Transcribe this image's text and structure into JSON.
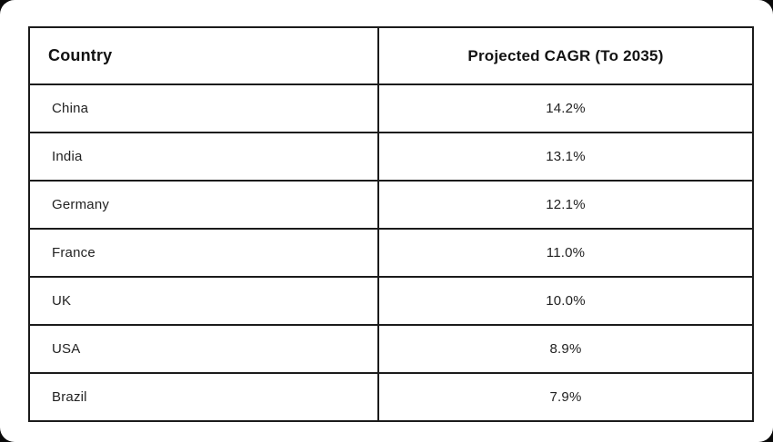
{
  "colors": {
    "page_background": "#0a0a0a",
    "card_background": "#ffffff",
    "table_border": "#1b1b1b",
    "header_text": "#121212",
    "cell_text": "#222222"
  },
  "table": {
    "columns": [
      {
        "label": "Country"
      },
      {
        "label": "Projected CAGR (To 2035)"
      }
    ],
    "rows": [
      {
        "country": "China",
        "cagr": "14.2%"
      },
      {
        "country": "India",
        "cagr": "13.1%"
      },
      {
        "country": "Germany",
        "cagr": "12.1%"
      },
      {
        "country": "France",
        "cagr": "11.0%"
      },
      {
        "country": "UK",
        "cagr": "10.0%"
      },
      {
        "country": "USA",
        "cagr": "8.9%"
      },
      {
        "country": "Brazil",
        "cagr": "7.9%"
      }
    ]
  },
  "chart_data": {
    "type": "table",
    "title": "",
    "columns": [
      "Country",
      "Projected CAGR (To 2035)"
    ],
    "categories": [
      "China",
      "India",
      "Germany",
      "France",
      "UK",
      "USA",
      "Brazil"
    ],
    "values": [
      14.2,
      13.1,
      12.1,
      11.0,
      10.0,
      8.9,
      7.9
    ],
    "value_unit": "%",
    "rows": [
      [
        "China",
        "14.2%"
      ],
      [
        "India",
        "13.1%"
      ],
      [
        "Germany",
        "12.1%"
      ],
      [
        "France",
        "11.0%"
      ],
      [
        "UK",
        "10.0%"
      ],
      [
        "USA",
        "8.9%"
      ],
      [
        "Brazil",
        "7.9%"
      ]
    ]
  }
}
